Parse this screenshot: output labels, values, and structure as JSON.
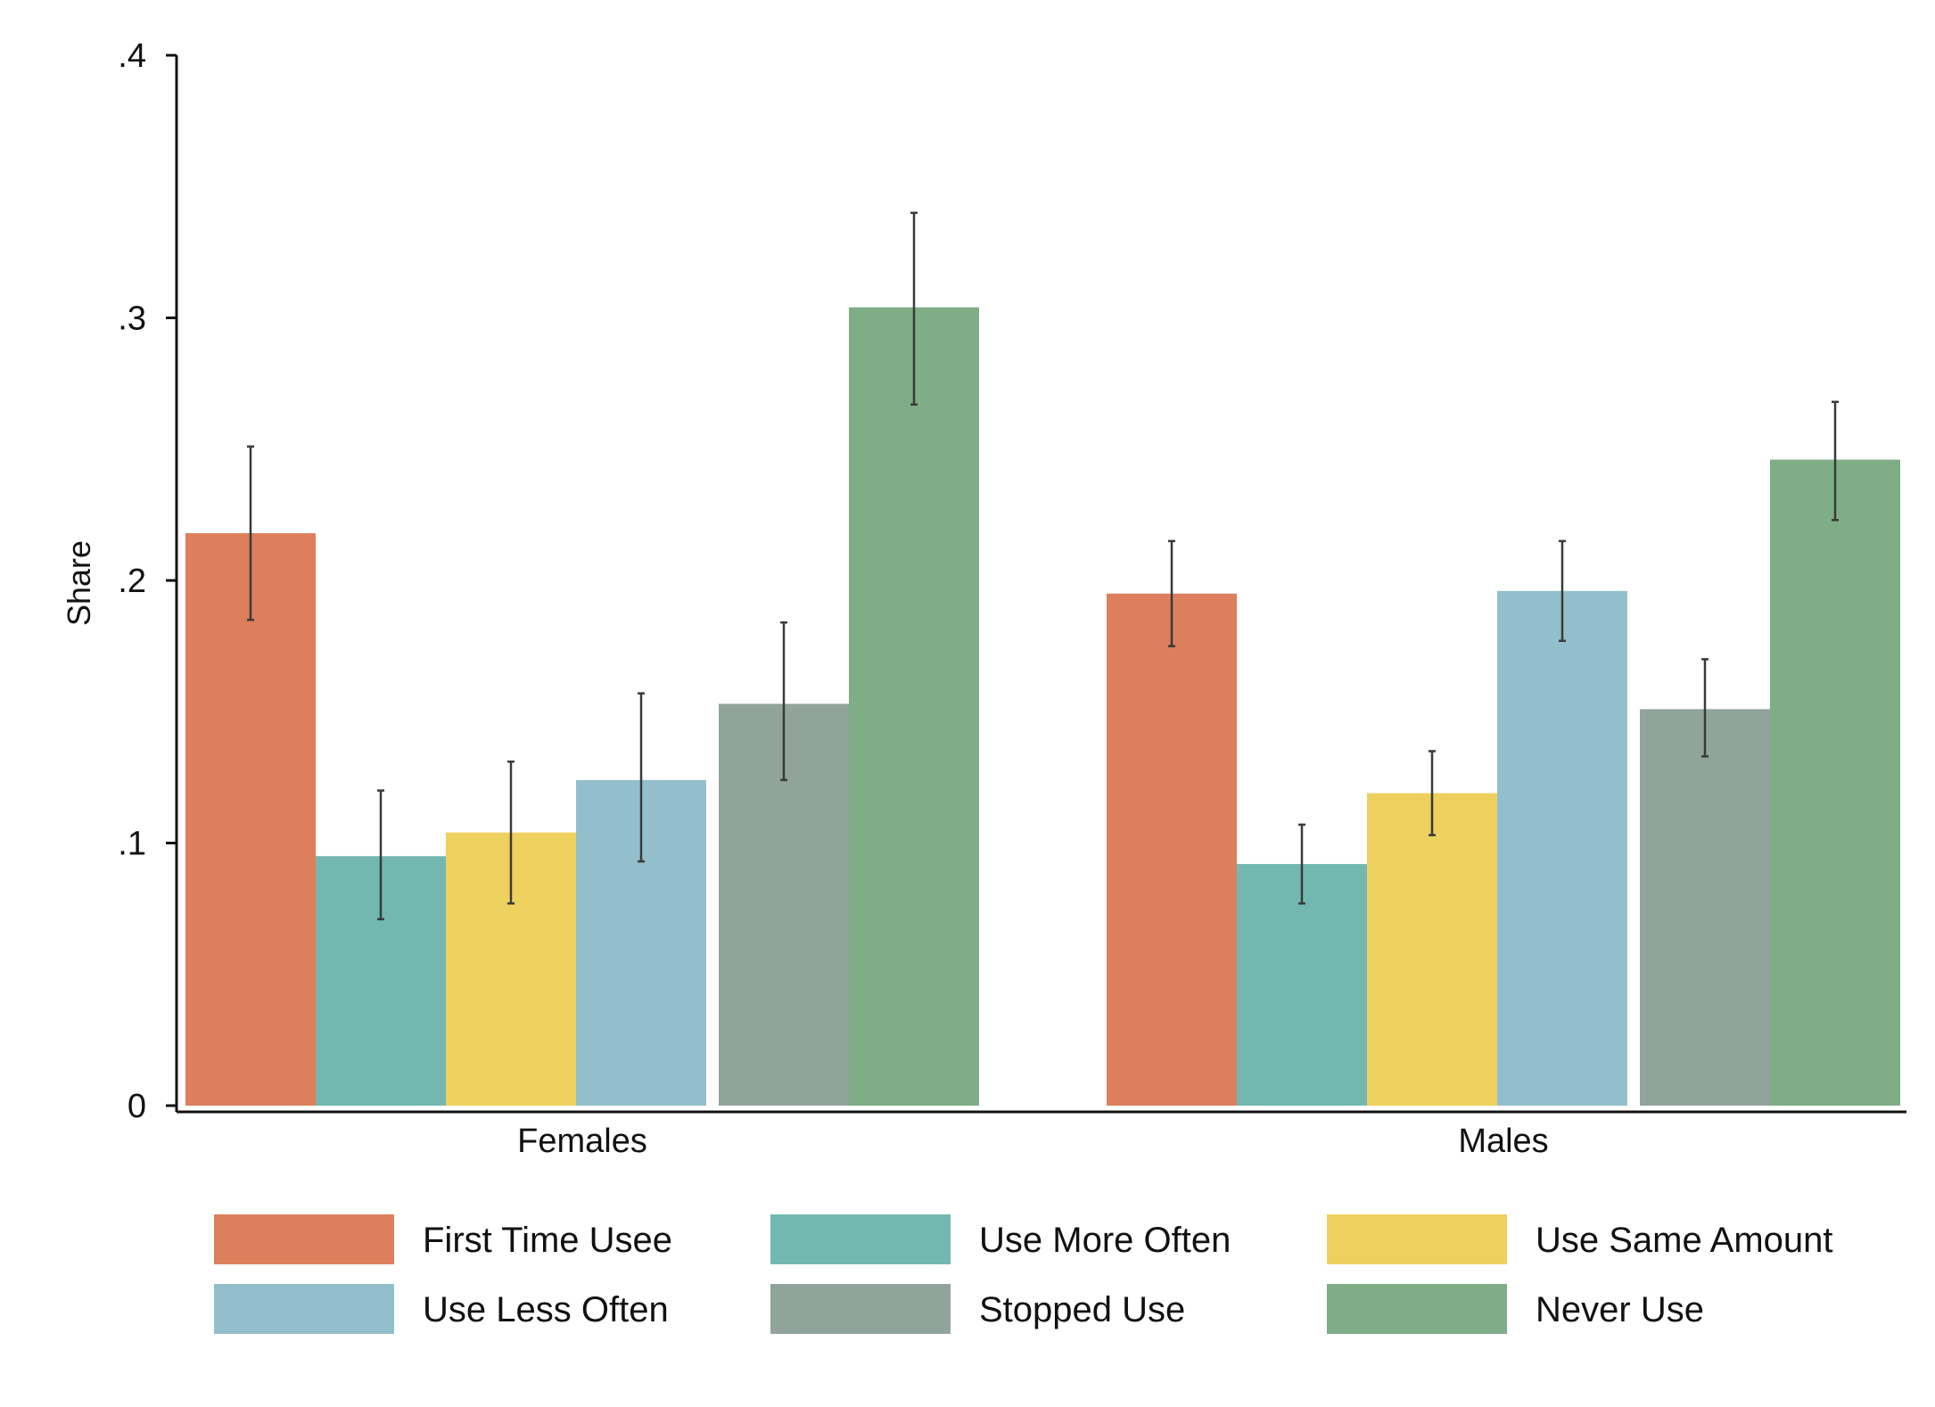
{
  "chart_data": {
    "type": "bar",
    "title": "",
    "xlabel": "",
    "ylabel": "Share",
    "ylim": [
      0,
      0.4
    ],
    "yticks": [
      0,
      0.1,
      0.2,
      0.3,
      0.4
    ],
    "ytick_labels": [
      "0",
      ".1",
      ".2",
      ".3",
      ".4"
    ],
    "categories": [
      "Females",
      "Males"
    ],
    "error_bars": true,
    "grid": false,
    "legend_position": "bottom",
    "series": [
      {
        "name": "First Time Usee",
        "color": "#dd7f5c",
        "values": [
          0.218,
          0.195
        ],
        "ci_low": [
          0.185,
          0.175
        ],
        "ci_high": [
          0.251,
          0.215
        ]
      },
      {
        "name": "Use More Often",
        "color": "#72b8b0",
        "values": [
          0.095,
          0.092
        ],
        "ci_low": [
          0.071,
          0.077
        ],
        "ci_high": [
          0.12,
          0.107
        ]
      },
      {
        "name": "Use Same Amount",
        "color": "#eed05e",
        "values": [
          0.104,
          0.119
        ],
        "ci_low": [
          0.077,
          0.103
        ],
        "ci_high": [
          0.131,
          0.135
        ]
      },
      {
        "name": "Use Less Often",
        "color": "#93bfcc",
        "values": [
          0.124,
          0.196
        ],
        "ci_low": [
          0.093,
          0.177
        ],
        "ci_high": [
          0.157,
          0.215
        ]
      },
      {
        "name": "Stopped Use",
        "color": "#90a49b",
        "values": [
          0.153,
          0.151
        ],
        "ci_low": [
          0.124,
          0.133
        ],
        "ci_high": [
          0.184,
          0.17
        ]
      },
      {
        "name": "Never Use",
        "color": "#7ead86",
        "values": [
          0.304,
          0.246
        ],
        "ci_low": [
          0.267,
          0.223
        ],
        "ci_high": [
          0.34,
          0.268
        ]
      }
    ]
  }
}
